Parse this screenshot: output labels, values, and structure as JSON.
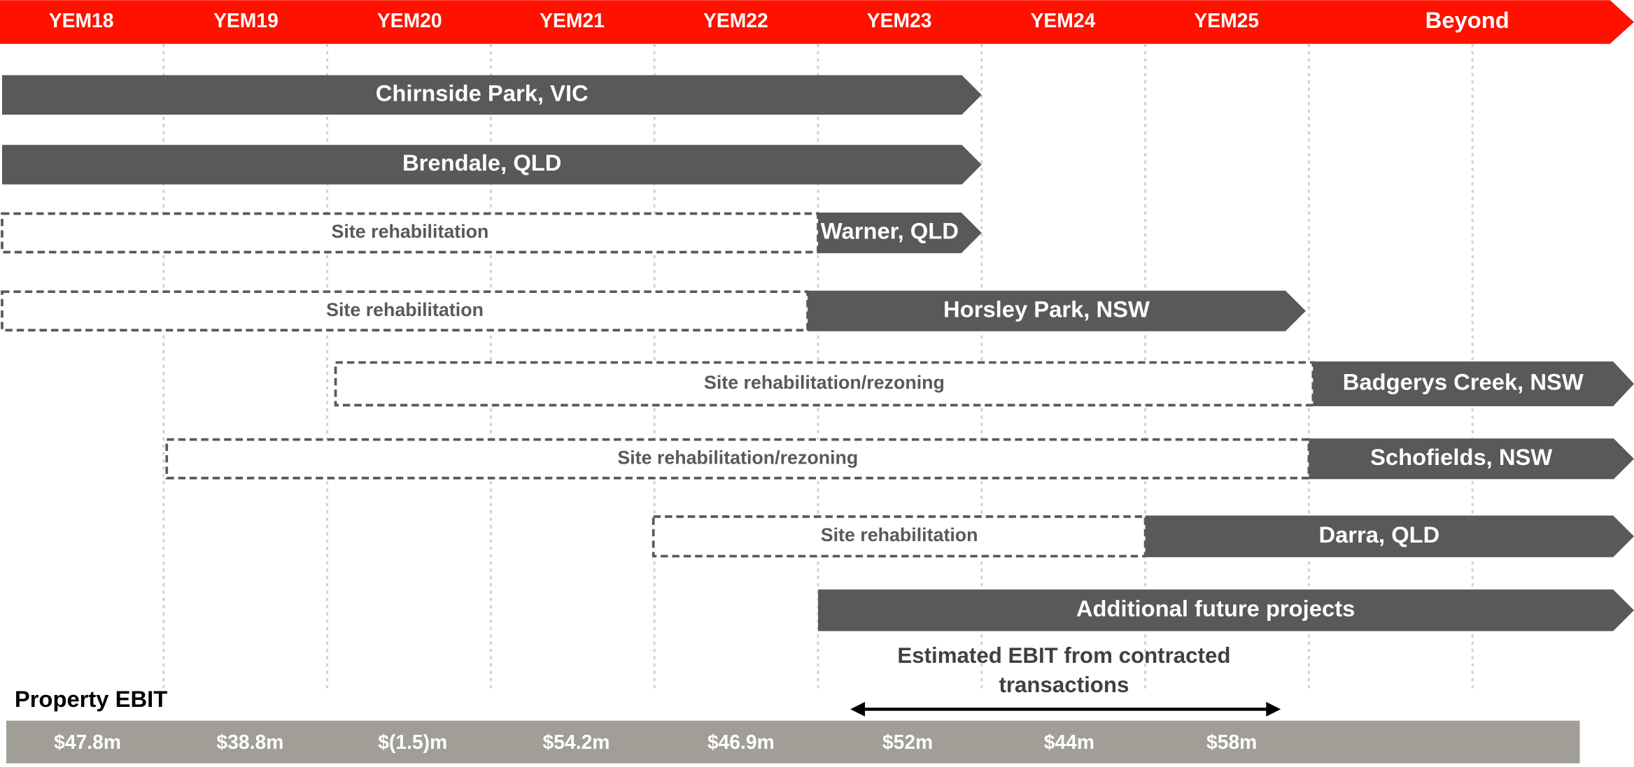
{
  "header": {
    "years": [
      "YEM18",
      "YEM19",
      "YEM20",
      "YEM21",
      "YEM22",
      "YEM23",
      "YEM24",
      "YEM25",
      "Beyond"
    ]
  },
  "rows": [
    {
      "label": "Chirnside Park, VIC"
    },
    {
      "label": "Brendale, QLD"
    },
    {
      "label": "Warner, QLD",
      "note": "Site rehabilitation"
    },
    {
      "label": "Horsley Park, NSW",
      "note": "Site rehabilitation"
    },
    {
      "label": "Badgerys Creek, NSW",
      "note": "Site rehabilitation/rezoning"
    },
    {
      "label": "Schofields, NSW",
      "note": "Site rehabilitation/rezoning"
    },
    {
      "label": "Darra, QLD",
      "note": "Site rehabilitation"
    },
    {
      "label": "Additional future projects"
    }
  ],
  "ebit": {
    "title": "Property EBIT",
    "annotation": [
      "Estimated EBIT from contracted",
      "transactions"
    ],
    "values": [
      "$47.8m",
      "$38.8m",
      "$(1.5)m",
      "$54.2m",
      "$46.9m",
      "$52m",
      "$44m",
      "$58m"
    ]
  }
}
